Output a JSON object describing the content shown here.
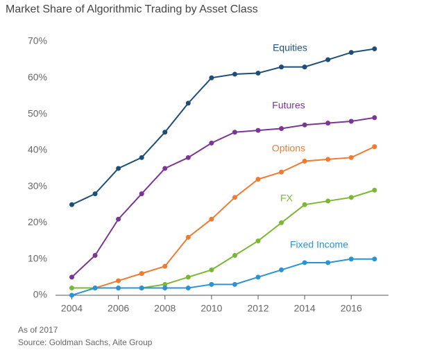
{
  "chart_data": {
    "type": "line",
    "title": "Market Share of Algorithmic Trading by Asset Class",
    "notes": [
      "As of 2017",
      "Source: Goldman Sachs, Aite Group"
    ],
    "x": [
      2004,
      2005,
      2006,
      2007,
      2008,
      2009,
      2010,
      2011,
      2012,
      2013,
      2014,
      2015,
      2016,
      2017
    ],
    "series": [
      {
        "name": "Equities",
        "color": "#1d4e79",
        "values": [
          25,
          28,
          35,
          38,
          45,
          53,
          60,
          61,
          61.3,
          63,
          63,
          65,
          67,
          68
        ]
      },
      {
        "name": "Futures",
        "color": "#7b3594",
        "values": [
          5,
          11,
          21,
          28,
          35,
          38,
          42,
          45,
          45.5,
          46,
          47,
          47.5,
          48,
          49
        ]
      },
      {
        "name": "Options",
        "color": "#ee7b30",
        "values": [
          null,
          2,
          4,
          6,
          8,
          16,
          21,
          27,
          32,
          34,
          37,
          37.5,
          38,
          41
        ]
      },
      {
        "name": "FX",
        "color": "#7cb733",
        "values": [
          2,
          2,
          2,
          2,
          3,
          5,
          7,
          11,
          15,
          20,
          25,
          26,
          27,
          29
        ]
      },
      {
        "name": "Fixed Income",
        "color": "#2a93d5",
        "values": [
          0,
          2,
          2,
          2,
          2,
          2,
          3,
          3,
          5,
          7,
          9,
          9,
          10,
          10
        ]
      }
    ],
    "xlim": [
      2003.3,
      2017.6
    ],
    "xticks": [
      2004,
      2006,
      2008,
      2010,
      2012,
      2014,
      2016
    ],
    "ylim": [
      0,
      70
    ],
    "yticks": [
      {
        "value": 0,
        "label": "0%"
      },
      {
        "value": 10,
        "label": "10%"
      },
      {
        "value": 20,
        "label": "20%"
      },
      {
        "value": 30,
        "label": "30%"
      },
      {
        "value": 40,
        "label": "40%"
      },
      {
        "value": 50,
        "label": "50%"
      },
      {
        "value": 60,
        "label": "60%"
      },
      {
        "value": 70,
        "label": "70%"
      }
    ]
  }
}
